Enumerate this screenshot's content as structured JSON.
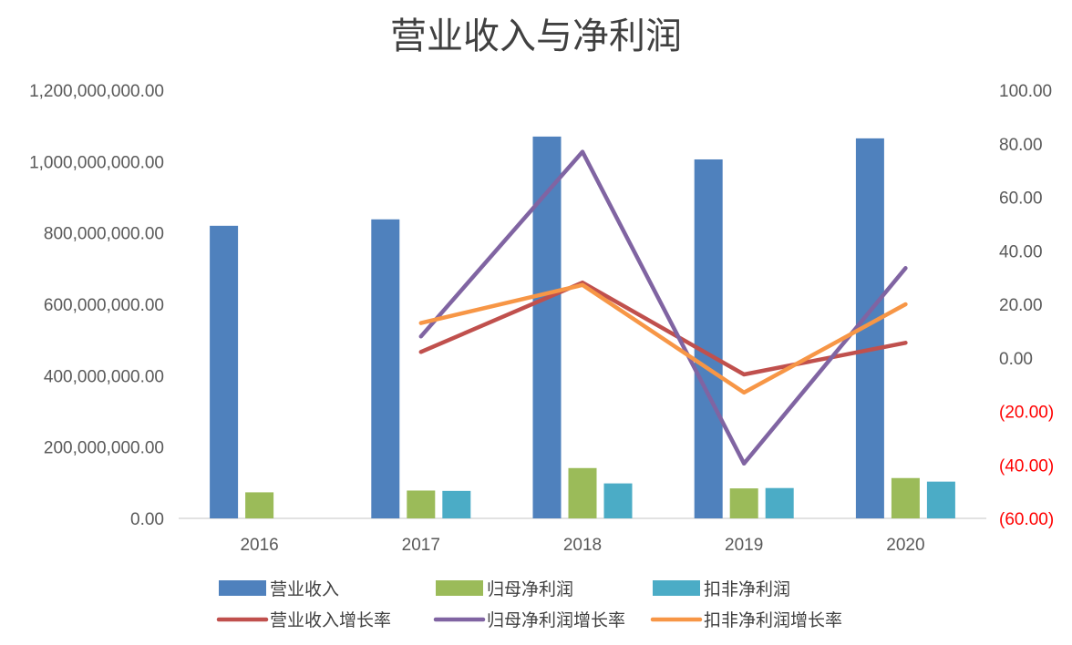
{
  "chart_data": {
    "type": "bar",
    "title": "营业收入与净利润",
    "categories": [
      "2016",
      "2017",
      "2018",
      "2019",
      "2020"
    ],
    "series": [
      {
        "name": "营业收入",
        "type": "bar",
        "axis": "left",
        "color": "#4F81BD",
        "values": [
          820000000,
          838000000,
          1070000000,
          1006000000,
          1065000000
        ]
      },
      {
        "name": "归母净利润",
        "type": "bar",
        "axis": "left",
        "color": "#9BBB59",
        "values": [
          73000000,
          78000000,
          141000000,
          84000000,
          113000000
        ]
      },
      {
        "name": "扣非净利润",
        "type": "bar",
        "axis": "left",
        "color": "#4BACC6",
        "values": [
          null,
          77000000,
          98000000,
          85000000,
          103000000
        ]
      },
      {
        "name": "营业收入增长率",
        "type": "line",
        "axis": "right",
        "color": "#C0504D",
        "values": [
          null,
          2.2,
          28.1,
          -6.2,
          5.6
        ]
      },
      {
        "name": "归母净利润增长率",
        "type": "line",
        "axis": "right",
        "color": "#8064A2",
        "values": [
          null,
          8.0,
          77.0,
          -39.5,
          33.5
        ]
      },
      {
        "name": "扣非净利润增长率",
        "type": "line",
        "axis": "right",
        "color": "#F79646",
        "values": [
          null,
          13.0,
          27.2,
          -13.0,
          20.0
        ]
      }
    ],
    "y_left": {
      "ylim": [
        0,
        1200000000
      ],
      "ticks": [
        "0.00",
        "200,000,000.00",
        "400,000,000.00",
        "600,000,000.00",
        "800,000,000.00",
        "1,000,000,000.00",
        "1,200,000,000.00"
      ]
    },
    "y_right": {
      "ylim": [
        -60,
        100
      ],
      "ticks": [
        "(60.00)",
        "(40.00)",
        "(20.00)",
        "0.00",
        "20.00",
        "40.00",
        "60.00",
        "80.00",
        "100.00"
      ],
      "negative_color": "#FF0000",
      "positive_color": "#595959"
    },
    "grid": false,
    "legend_position": "bottom"
  }
}
